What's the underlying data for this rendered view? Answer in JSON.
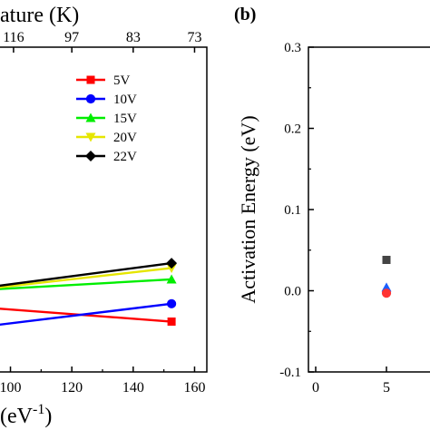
{
  "panel_a": {
    "top_axis_label": "ature (K)",
    "bottom_axis_label_prefix": "(eV",
    "bottom_axis_label_sup": "-1",
    "bottom_axis_label_suffix": ")"
  },
  "panel_b": {
    "panel_label": "(b)"
  },
  "chart_data": [
    {
      "type": "line",
      "panel": "a",
      "x_range": [
        96,
        164
      ],
      "y_range": [
        0,
        100
      ],
      "x_ticks": [
        {
          "value": 100,
          "label": "100"
        },
        {
          "value": 120,
          "label": "120"
        },
        {
          "value": 140,
          "label": "140"
        },
        {
          "value": 160,
          "label": "160"
        }
      ],
      "top_ticks": [
        {
          "value": 101,
          "label": "116"
        },
        {
          "value": 120,
          "label": "97"
        },
        {
          "value": 140,
          "label": "83"
        },
        {
          "value": 160,
          "label": "73"
        }
      ],
      "xlabel_visible": "(eV-1)",
      "top_label_visible": "ature (K)",
      "grid": false,
      "legend_position": "top-right",
      "series": [
        {
          "name": "5V",
          "color": "#ff0000",
          "marker": "square",
          "x": [
            96,
            152.5
          ],
          "y": [
            19.5,
            15.5
          ]
        },
        {
          "name": "10V",
          "color": "#0000ff",
          "marker": "circle",
          "x": [
            96,
            152.5
          ],
          "y": [
            14.5,
            21.0
          ]
        },
        {
          "name": "15V",
          "color": "#00ee00",
          "marker": "triangle-up",
          "x": [
            96,
            152.5
          ],
          "y": [
            25.5,
            28.5
          ]
        },
        {
          "name": "20V",
          "color": "#e6e600",
          "marker": "triangle-down",
          "x": [
            96,
            152.5
          ],
          "y": [
            26.0,
            32.0
          ]
        },
        {
          "name": "22V",
          "color": "#000000",
          "marker": "diamond",
          "x": [
            96,
            152.5
          ],
          "y": [
            26.5,
            33.5
          ]
        }
      ]
    },
    {
      "type": "scatter",
      "panel": "b",
      "ylabel": "Activation Energy (eV)",
      "y_range": [
        -0.1,
        0.3
      ],
      "x_range": [
        0,
        8
      ],
      "y_ticks": [
        {
          "value": 0.3,
          "label": "0.3"
        },
        {
          "value": 0.2,
          "label": "0.2"
        },
        {
          "value": 0.1,
          "label": "0.1"
        },
        {
          "value": 0.0,
          "label": "0.0"
        },
        {
          "value": -0.1,
          "label": "-0.1"
        }
      ],
      "x_ticks": [
        {
          "value": 0,
          "label": "0"
        },
        {
          "value": 5,
          "label": "5"
        }
      ],
      "grid": false,
      "points": [
        {
          "x": 5,
          "y": 0.038,
          "color": "#444444",
          "marker": "square"
        },
        {
          "x": 5,
          "y": 0.004,
          "color": "#1a5fff",
          "marker": "triangle-up"
        },
        {
          "x": 5,
          "y": -0.003,
          "color": "#ff3333",
          "marker": "circle"
        }
      ]
    }
  ]
}
